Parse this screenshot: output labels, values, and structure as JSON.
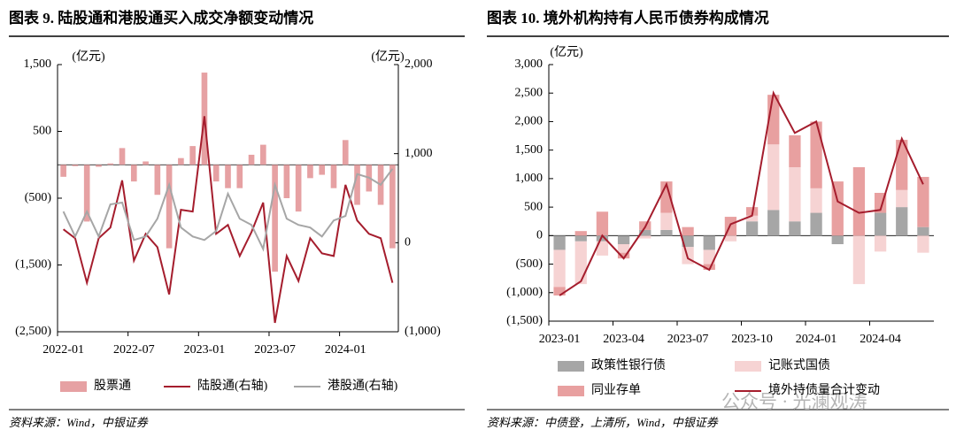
{
  "chart_data": [
    {
      "type": "bar",
      "title": "图表 9. 陆股通和港股通买入成交净额变动情况",
      "y_label": "(亿元)",
      "y2_label": "(亿元)",
      "source": "资料来源：Wind，中银证券",
      "negative_tick_color": "#c00000",
      "categories": [
        "2022-01",
        null,
        null,
        null,
        null,
        null,
        "2022-07",
        null,
        null,
        null,
        null,
        null,
        "2023-01",
        null,
        null,
        null,
        null,
        null,
        "2023-07",
        null,
        null,
        null,
        null,
        null,
        "2024-01",
        null,
        null,
        null,
        null
      ],
      "ylim": [
        -2500,
        1500
      ],
      "yticks": [
        {
          "value": 1500,
          "label": "1,500"
        },
        500,
        {
          "value": -500,
          "label": "(500)"
        },
        {
          "value": -1500,
          "label": "(1,500)"
        },
        {
          "value": -2500,
          "label": "(2,500)"
        }
      ],
      "y2lim": [
        -1000,
        2000
      ],
      "y2ticks": [
        {
          "value": 2000,
          "label": "2,000"
        },
        {
          "value": 1000,
          "label": "1,000"
        },
        0,
        {
          "value": -1000,
          "label": "(1,000)"
        }
      ],
      "series": [
        {
          "name": "股票通",
          "type": "bar",
          "color": "#e6a1a3",
          "values": [
            -180,
            -20,
            -850,
            -30,
            20,
            250,
            -250,
            50,
            -450,
            -1250,
            100,
            280,
            1380,
            -250,
            -350,
            -350,
            150,
            300,
            -1600,
            -500,
            -700,
            -200,
            -150,
            -350,
            370,
            -600,
            -400,
            -600,
            -1250
          ]
        },
        {
          "name": "陆股通(右轴)",
          "type": "line",
          "axis": "y2",
          "color": "#a51d2d",
          "values": [
            150,
            50,
            -450,
            50,
            170,
            700,
            -200,
            100,
            -50,
            -580,
            370,
            350,
            1420,
            100,
            200,
            -150,
            120,
            450,
            -900,
            -150,
            -430,
            50,
            -120,
            -150,
            650,
            250,
            100,
            50,
            -450
          ]
        },
        {
          "name": "港股通(右轴)",
          "type": "line",
          "axis": "y2",
          "color": "#a6a6a6",
          "values": [
            350,
            70,
            350,
            70,
            430,
            450,
            30,
            70,
            270,
            650,
            170,
            70,
            30,
            130,
            550,
            270,
            200,
            -70,
            650,
            270,
            200,
            170,
            70,
            250,
            300,
            770,
            730,
            650,
            830
          ]
        }
      ]
    },
    {
      "type": "stacked_bar",
      "title": "图表 10. 境外机构持有人民币债券构成情况",
      "y_label": "(亿元)",
      "source": "资料来源：中债登，上清所，Wind，中银证券",
      "watermark": "公众号 · 光澜观涛",
      "categories": [
        "2023-01",
        null,
        null,
        "2023-04",
        null,
        null,
        "2023-07",
        null,
        null,
        "2023-10",
        null,
        null,
        "2024-01",
        null,
        null,
        "2024-04",
        null,
        null
      ],
      "ylim": [
        -1500,
        3000
      ],
      "yticks": [
        {
          "value": 3000,
          "label": "3,000"
        },
        {
          "value": 2500,
          "label": "2,500"
        },
        {
          "value": 2000,
          "label": "2,000"
        },
        {
          "value": 1500,
          "label": "1,500"
        },
        {
          "value": 1000,
          "label": "1,000"
        },
        500,
        0,
        {
          "value": -500,
          "label": "(500)"
        },
        {
          "value": -1000,
          "label": "(1,000)"
        },
        {
          "value": -1500,
          "label": "(1,500)"
        }
      ],
      "series": [
        {
          "name": "政策性银行债",
          "type": "bar",
          "color": "#a6a6a6",
          "values": [
            -250,
            -100,
            -100,
            -150,
            100,
            100,
            -200,
            -250,
            0,
            250,
            450,
            250,
            400,
            -150,
            0,
            400,
            500,
            150
          ]
        },
        {
          "name": "记账式国债",
          "type": "bar",
          "color": "#f6d3d3",
          "values": [
            -650,
            -750,
            -250,
            -150,
            -50,
            300,
            -300,
            -250,
            -100,
            100,
            1150,
            950,
            430,
            0,
            -850,
            -280,
            300,
            -300
          ]
        },
        {
          "name": "同业存单",
          "type": "bar",
          "color": "#e8a0a0",
          "values": [
            -150,
            80,
            420,
            -100,
            150,
            550,
            150,
            -100,
            330,
            150,
            870,
            560,
            1170,
            950,
            1200,
            350,
            880,
            880
          ]
        },
        {
          "name": "境外持债量合计变动",
          "type": "line",
          "color": "#a51d2d",
          "values": [
            -1050,
            -800,
            0,
            -400,
            150,
            900,
            -400,
            -600,
            200,
            350,
            2500,
            1800,
            2000,
            600,
            400,
            450,
            1700,
            900
          ]
        }
      ]
    }
  ]
}
